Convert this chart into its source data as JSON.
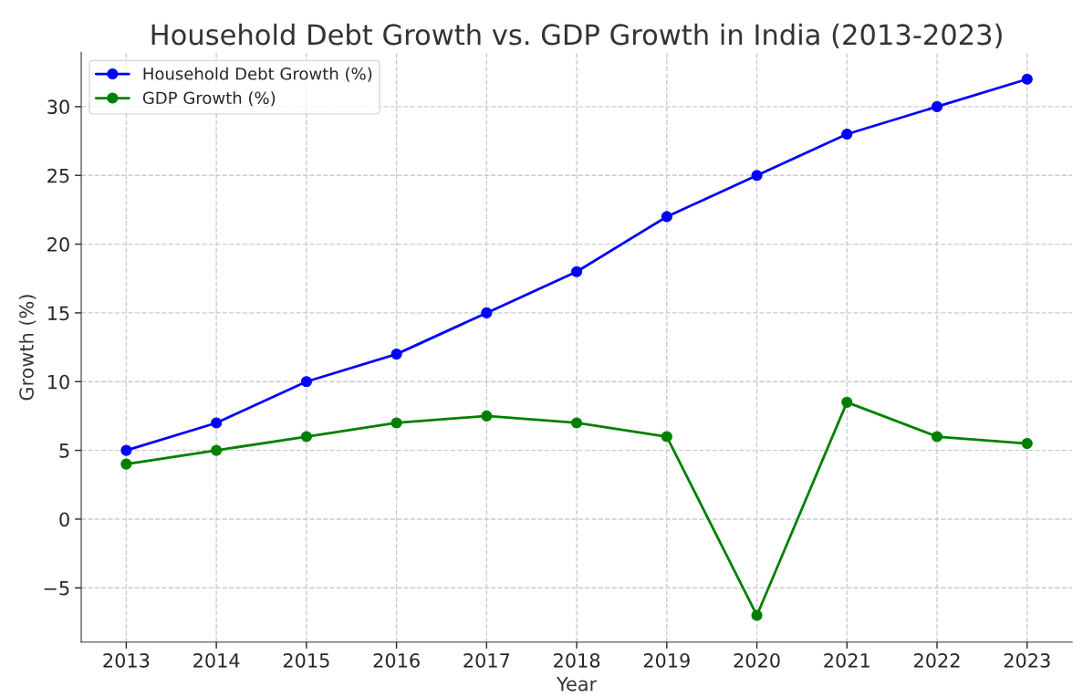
{
  "chart_data": {
    "type": "line",
    "title": "Household Debt Growth vs. GDP Growth in India (2013-2023)",
    "xlabel": "Year",
    "ylabel": "Growth (%)",
    "x": [
      2013,
      2014,
      2015,
      2016,
      2017,
      2018,
      2019,
      2020,
      2021,
      2022,
      2023
    ],
    "series": [
      {
        "name": "Household Debt Growth (%)",
        "color": "#0000ff",
        "values": [
          5,
          7,
          10,
          12,
          15,
          18,
          22,
          25,
          28,
          30,
          32
        ]
      },
      {
        "name": "GDP Growth (%)",
        "color": "#008000",
        "values": [
          4,
          5,
          6,
          7,
          7.5,
          7,
          6,
          -7,
          8.5,
          6,
          5.5
        ]
      }
    ],
    "xlim": [
      2012.5,
      2023.5
    ],
    "xticks": [
      2013,
      2014,
      2015,
      2016,
      2017,
      2018,
      2019,
      2020,
      2021,
      2022,
      2023
    ],
    "ylim": [
      -8.95,
      33.95
    ],
    "yticks": [
      -5,
      0,
      5,
      10,
      15,
      20,
      25,
      30
    ],
    "grid": true,
    "legend": "top left",
    "marker": "circle",
    "line_style": "solid"
  }
}
